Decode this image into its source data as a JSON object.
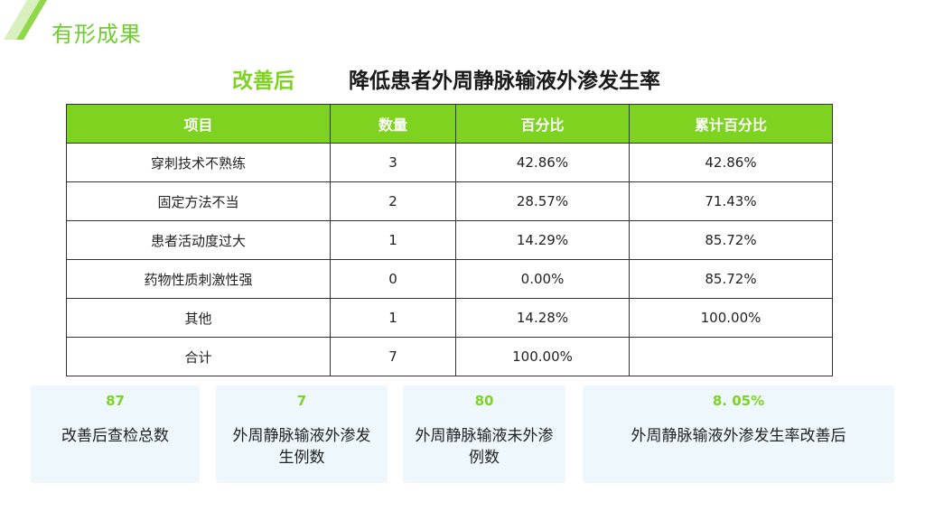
{
  "section_title": "有形成果",
  "heading": {
    "prefix": "改善后",
    "main": "降低患者外周静脉输液外渗发生率"
  },
  "table": {
    "headers": [
      "项目",
      "数量",
      "百分比",
      "累计百分比"
    ],
    "rows": [
      [
        "穿刺技术不熟练",
        "3",
        "42.86%",
        "42.86%"
      ],
      [
        "固定方法不当",
        "2",
        "28.57%",
        "71.43%"
      ],
      [
        "患者活动度过大",
        "1",
        "14.29%",
        "85.72%"
      ],
      [
        "药物性质刺激性强",
        "0",
        "0.00%",
        "85.72%"
      ],
      [
        "其他",
        "1",
        "14.28%",
        "100.00%"
      ],
      [
        "合计",
        "7",
        "100.00%",
        ""
      ]
    ]
  },
  "cards": [
    {
      "value": "87",
      "label": "改善后查检总数"
    },
    {
      "value": "7",
      "label": "外周静脉输液外渗发生例数"
    },
    {
      "value": "80",
      "label": "外周静脉输液未外渗例数"
    },
    {
      "value": "8. 05%",
      "label": "外周静脉输液外渗发生率改善后"
    }
  ],
  "colors": {
    "accent": "#7ed321",
    "card_bg": "#eef8fc"
  }
}
